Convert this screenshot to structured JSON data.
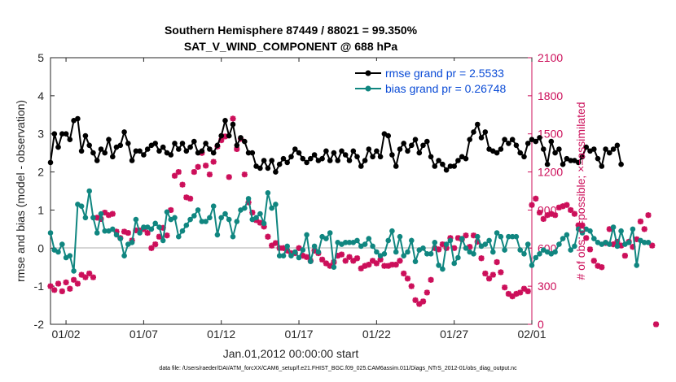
{
  "chart_data": {
    "type": "line",
    "title_line1": "Southern Hemisphere 87449 / 88021 = 99.350%",
    "title_line2": "SAT_V_WIND_COMPONENT @ 688 hPa",
    "xlabel": "Jan.01,2012 00:00:00 start",
    "ylabel": "rmse and bias (model - observation)",
    "y2label": "# of obs: o=possible; ×=assimilated",
    "xlim": [
      0.5,
      31.5
    ],
    "ylim": [
      -2,
      5
    ],
    "y2lim": [
      0,
      2100
    ],
    "x_tick_values": [
      1.5,
      6.5,
      11.5,
      16.5,
      21.5,
      26.5,
      31.5
    ],
    "x_tick_labels": [
      "01/02",
      "01/07",
      "01/12",
      "01/17",
      "01/22",
      "01/27",
      "02/01"
    ],
    "y_ticks": [
      "-2",
      "-1",
      "0",
      "1",
      "2",
      "3",
      "4",
      "5"
    ],
    "y2_ticks": [
      "0",
      "300",
      "600",
      "900",
      "1200",
      "1500",
      "1800",
      "2100"
    ],
    "series": [
      {
        "name": "rmse grand pr = 2.5533",
        "color": "#000000",
        "x_start": 0.5,
        "x_step": 0.25,
        "values": [
          2.25,
          3.0,
          2.65,
          3.0,
          3.0,
          2.85,
          3.35,
          3.4,
          2.55,
          2.95,
          2.7,
          2.5,
          2.3,
          2.6,
          2.5,
          2.85,
          2.4,
          2.65,
          2.7,
          3.05,
          2.75,
          2.3,
          2.55,
          2.55,
          2.45,
          2.6,
          2.7,
          2.75,
          2.55,
          2.65,
          2.5,
          2.45,
          2.75,
          2.6,
          2.75,
          2.55,
          2.65,
          2.8,
          2.5,
          2.55,
          2.75,
          2.6,
          2.5,
          2.7,
          2.95,
          3.35,
          2.95,
          3.25,
          2.7,
          2.9,
          2.8,
          2.5,
          2.5,
          2.15,
          2.1,
          2.3,
          2.1,
          2.3,
          2.0,
          2.2,
          2.35,
          2.25,
          2.4,
          2.6,
          2.5,
          2.35,
          2.25,
          2.35,
          2.45,
          2.3,
          2.35,
          2.55,
          2.3,
          2.5,
          2.3,
          2.55,
          2.45,
          2.3,
          2.55,
          2.4,
          2.15,
          2.3,
          2.6,
          2.4,
          2.55,
          2.4,
          3.0,
          2.95,
          2.45,
          2.15,
          2.6,
          2.75,
          2.55,
          2.7,
          2.85,
          2.5,
          2.7,
          2.8,
          2.4,
          2.15,
          2.3,
          2.2,
          2.05,
          2.15,
          2.15,
          2.3,
          2.4,
          2.35,
          2.85,
          3.05,
          3.25,
          2.9,
          3.05,
          2.6,
          2.55,
          2.5,
          2.6,
          2.85,
          2.75,
          2.85,
          2.7,
          2.5,
          2.4,
          2.75,
          2.85,
          2.8,
          2.9,
          2.6,
          2.2,
          2.8,
          2.5,
          2.6,
          2.2,
          2.35,
          2.3,
          2.3,
          2.25,
          2.4,
          2.65,
          2.55,
          2.6,
          2.35,
          2.15,
          2.6,
          2.5,
          2.6,
          2.7,
          2.2
        ]
      },
      {
        "name": "bias grand pr = 0.26748",
        "color": "#108680",
        "x_start": 0.5,
        "x_step": 0.25,
        "values": [
          0.4,
          -0.05,
          -0.1,
          0.1,
          -0.25,
          -0.2,
          -0.6,
          1.15,
          1.1,
          0.8,
          1.5,
          0.8,
          0.4,
          0.9,
          0.45,
          0.45,
          0.5,
          0.35,
          0.25,
          -0.2,
          0.1,
          0.15,
          0.75,
          0.4,
          0.55,
          0.55,
          0.5,
          0.65,
          0.55,
          0.2,
          0.95,
          0.75,
          0.8,
          0.3,
          0.45,
          0.6,
          0.75,
          0.85,
          1.0,
          0.7,
          0.7,
          0.8,
          1.1,
          0.35,
          0.8,
          0.9,
          0.75,
          0.3,
          0.7,
          1.0,
          1.05,
          1.3,
          0.75,
          0.8,
          0.9,
          0.65,
          1.45,
          1.05,
          1.15,
          -0.2,
          -0.2,
          0.05,
          -0.2,
          -0.1,
          -0.25,
          -0.05,
          0.35,
          -0.35,
          0.05,
          -0.1,
          0.3,
          0.25,
          0.4,
          -0.5,
          0.15,
          0.1,
          0.15,
          0.15,
          0.15,
          0.2,
          0.05,
          0.1,
          0.25,
          0.05,
          -0.1,
          -0.2,
          -0.15,
          0.2,
          0.45,
          -0.1,
          0.3,
          -0.2,
          -0.1,
          0.2,
          -0.35,
          -0.05,
          0.0,
          -0.15,
          -0.15,
          0.15,
          -0.45,
          -0.55,
          0.1,
          0.2,
          -0.4,
          -0.25,
          0.25,
          0.0,
          -0.1,
          -0.15,
          0.3,
          0.05,
          0.1,
          0.2,
          -0.1,
          0.4,
          0.3,
          -0.05,
          0.3,
          0.3,
          0.3,
          -0.05,
          -0.15,
          0.1,
          -0.45,
          -0.25,
          -0.15,
          -0.05,
          -0.1,
          -0.15,
          -0.1,
          0.1,
          0.25,
          0.35,
          -0.05,
          0.05,
          0.5,
          0.4,
          0.5,
          0.45,
          0.25,
          0.15,
          0.1,
          0.15,
          0.1,
          0.55,
          0.05,
          0.45,
          0.1,
          0.15,
          0.5,
          -0.45,
          0.2,
          0.15,
          0.15
        ]
      },
      {
        "name": "assimilated",
        "color": "#cc0f5a",
        "x_start": 0.5,
        "x_step": 0.25,
        "values": [
          300,
          270,
          320,
          260,
          330,
          280,
          350,
          320,
          390,
          370,
          400,
          370,
          840,
          830,
          880,
          860,
          870,
          730,
          680,
          730,
          720,
          660,
          740,
          740,
          750,
          720,
          600,
          630,
          690,
          760,
          700,
          900,
          1170,
          1200,
          1100,
          1000,
          990,
          1200,
          1240,
          1350,
          1250,
          1180,
          1280,
          1400,
          1450,
          1480,
          1160,
          1620,
          1380,
          1460,
          1180,
          960,
          880,
          820,
          800,
          770,
          690,
          620,
          640,
          600,
          600,
          580,
          560,
          560,
          600,
          540,
          530,
          500,
          580,
          560,
          510,
          480,
          460,
          490,
          540,
          550,
          500,
          530,
          500,
          520,
          440,
          460,
          470,
          500,
          480,
          510,
          460,
          460,
          470,
          470,
          500,
          400,
          360,
          300,
          190,
          160,
          180,
          250,
          350,
          600,
          590,
          630,
          600,
          680,
          600,
          680,
          670,
          700,
          610,
          700,
          650,
          520,
          400,
          360,
          390,
          490,
          410,
          290,
          240,
          220,
          240,
          250,
          280,
          260,
          940,
          990,
          880,
          830,
          860,
          870,
          860,
          920,
          930,
          940,
          900,
          870,
          780,
          780,
          680,
          590,
          500,
          460,
          450,
          640,
          750,
          630,
          650,
          620,
          540,
          650,
          610,
          670,
          810,
          750,
          860,
          620,
          0
        ]
      }
    ]
  },
  "footnote": "data file: /Users/raeder/DAI/ATM_forcXX/CAM6_setup/f.e21.FHIST_BGC.f09_025.CAM6assim.011/Diags_NTrS_2012-01/obs_diag_output.nc"
}
